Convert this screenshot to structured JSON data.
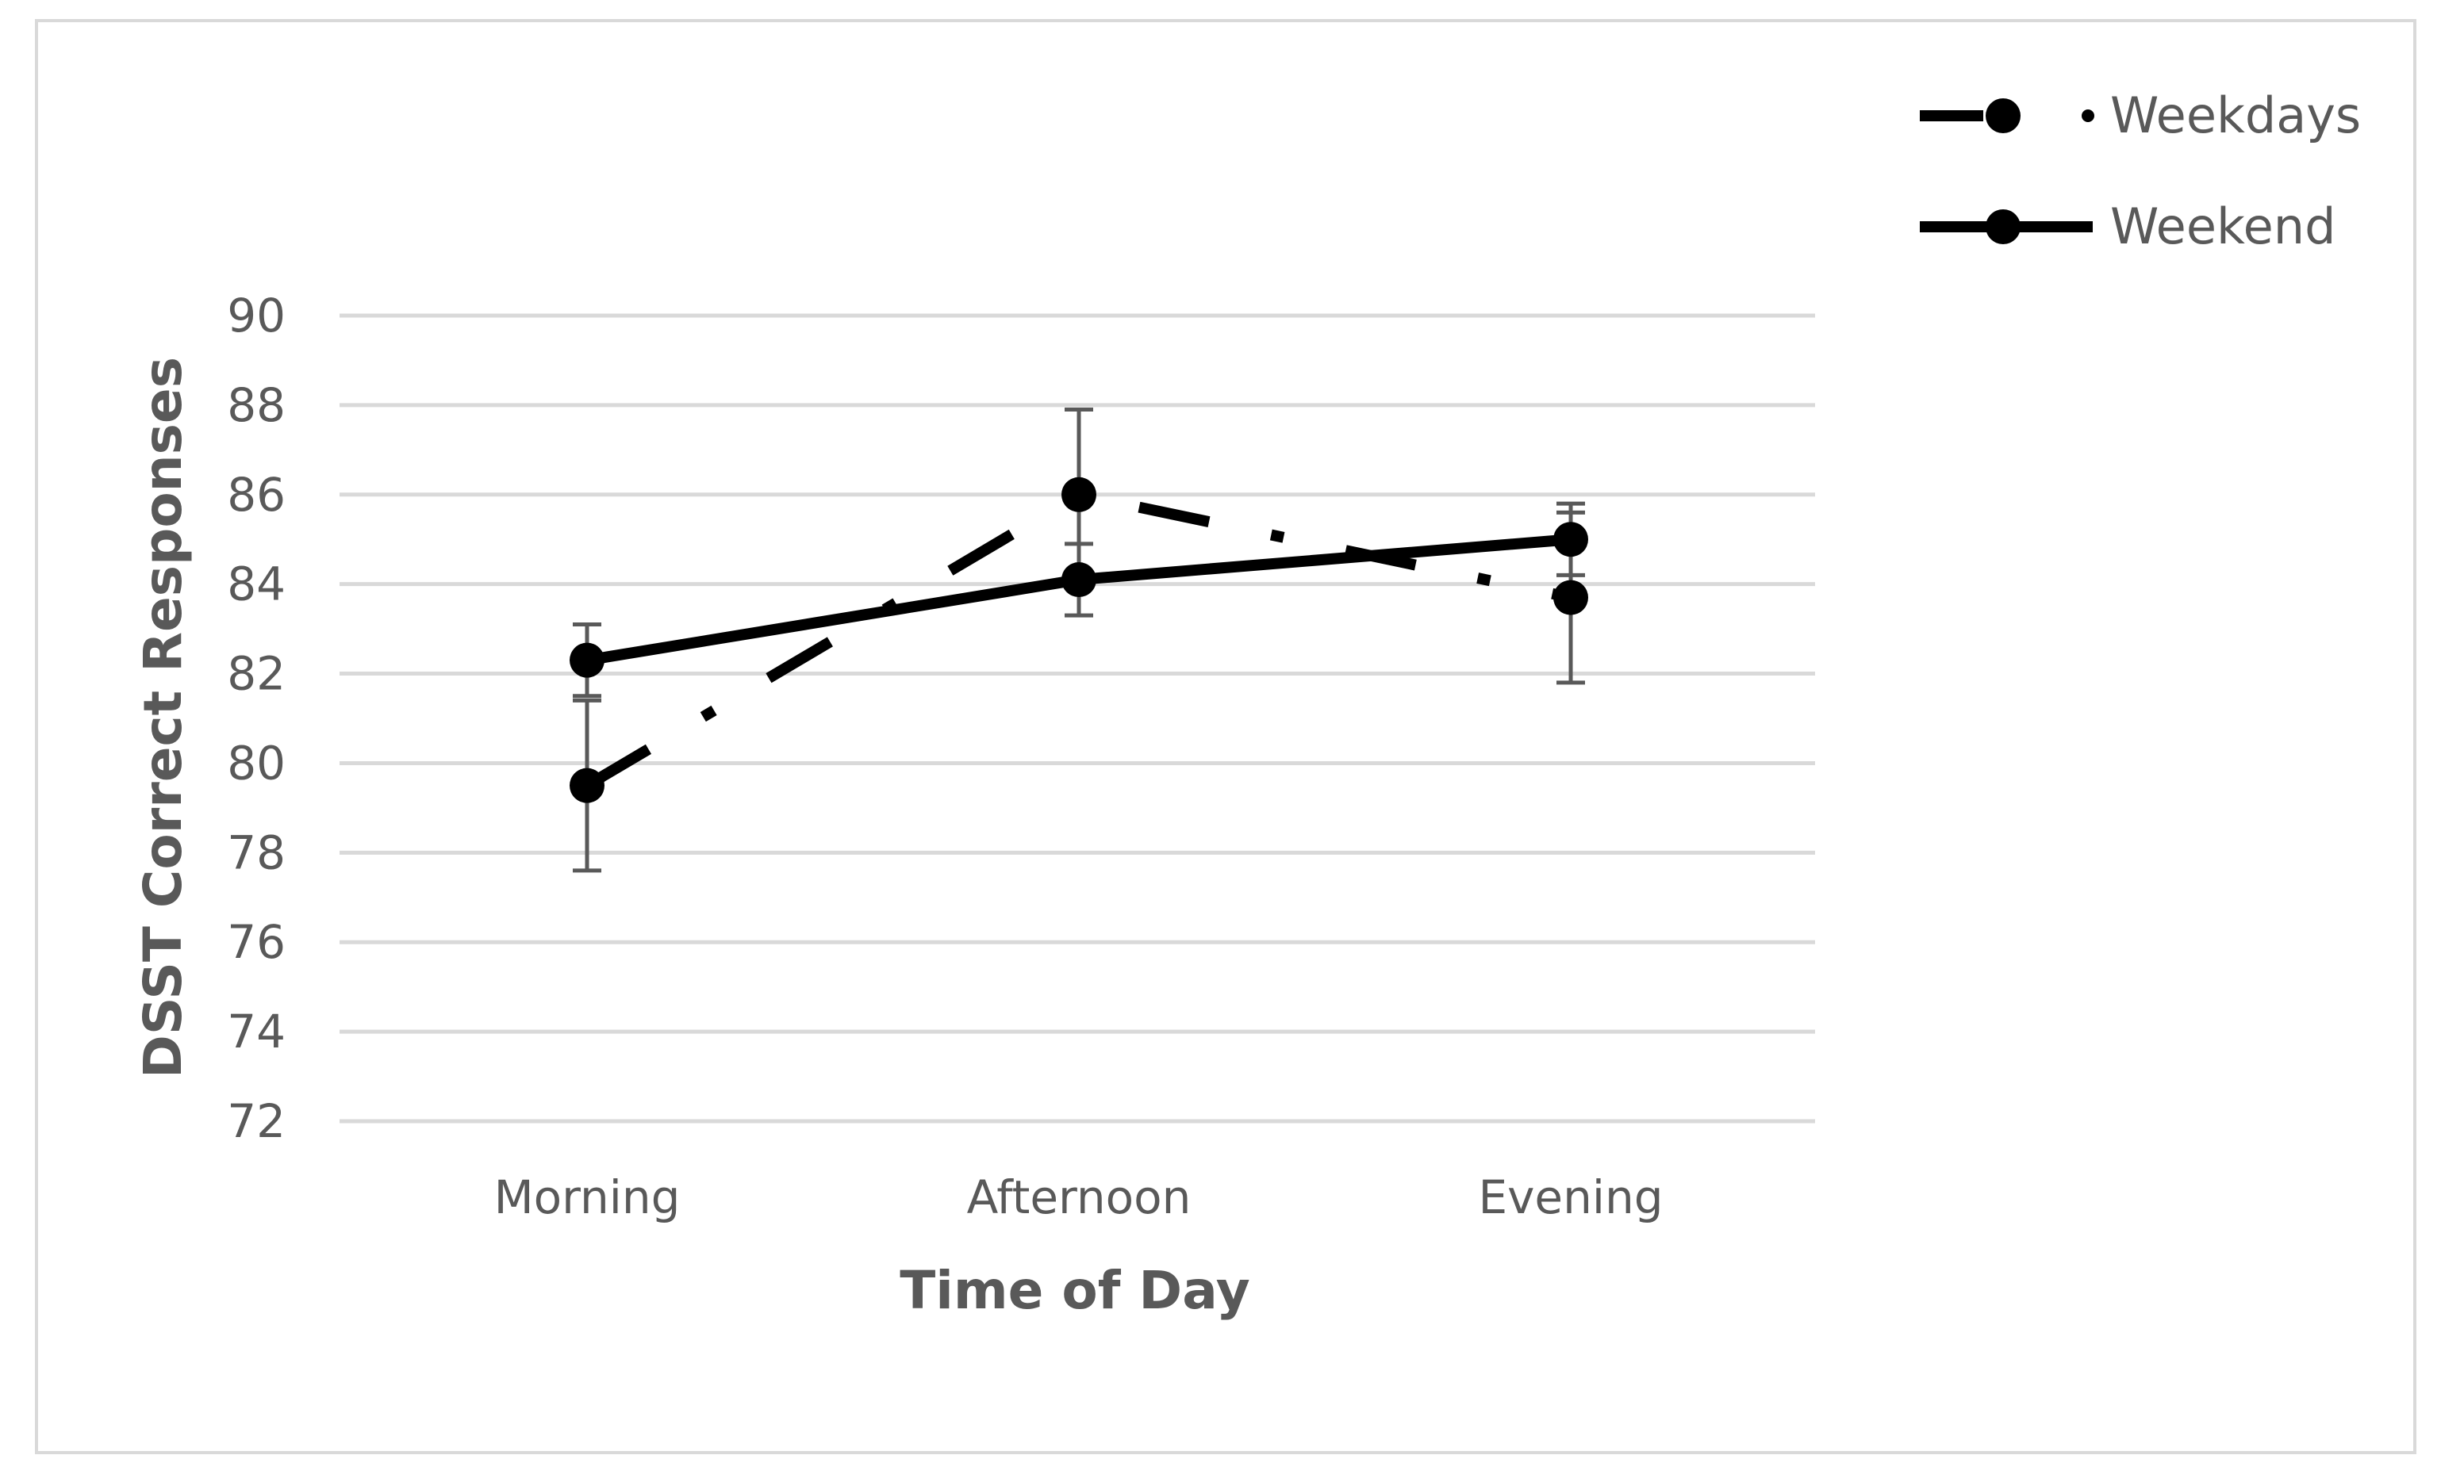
{
  "chart_data": {
    "type": "line",
    "title": "",
    "xlabel": "Time of Day",
    "ylabel": "DSST Correct Responses",
    "categories": [
      "Morning",
      "Afternoon",
      "Evening"
    ],
    "ylim": [
      72,
      90
    ],
    "yticks": [
      "72",
      "74",
      "76",
      "78",
      "80",
      "82",
      "84",
      "86",
      "88",
      "90"
    ],
    "grid": "horizontal",
    "legend_position": "top-right",
    "series": [
      {
        "name": "Weekdays",
        "line_style": "dash-dot",
        "color": "#000000",
        "values": [
          79.5,
          86.0,
          83.7
        ],
        "error": [
          1.9,
          1.9,
          1.9
        ]
      },
      {
        "name": "Weekend",
        "line_style": "solid",
        "color": "#000000",
        "values": [
          82.3,
          84.1,
          85.0
        ],
        "error": [
          0.8,
          0.8,
          0.8
        ]
      }
    ],
    "colors": {
      "gridline": "#d9d9d9",
      "error_bar": "#595959",
      "text": "#595959",
      "frame": "#d9d9d9"
    }
  }
}
